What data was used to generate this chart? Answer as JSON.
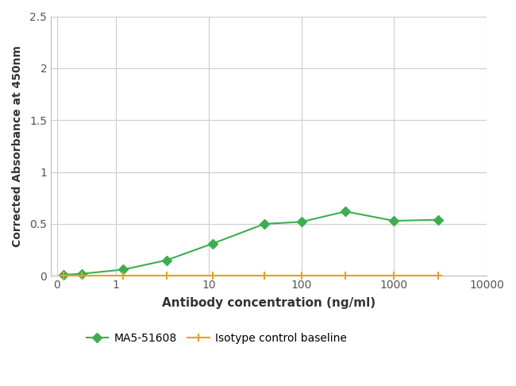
{
  "green_x": [
    0.1,
    0.4,
    1.2,
    3.5,
    11,
    40,
    100,
    300,
    1000,
    3000
  ],
  "green_y": [
    0.01,
    0.02,
    0.06,
    0.15,
    0.31,
    0.5,
    0.52,
    0.62,
    0.53,
    0.54
  ],
  "orange_x": [
    0.1,
    0.4,
    1.2,
    3.5,
    11,
    40,
    100,
    300,
    1000,
    3000
  ],
  "orange_y": [
    0.005,
    0.005,
    0.005,
    0.005,
    0.005,
    0.005,
    0.005,
    0.005,
    0.005,
    0.005
  ],
  "green_color": "#3dae4f",
  "orange_color": "#e8a025",
  "green_label": "MA5-51608",
  "orange_label": "Isotype control baseline",
  "xlabel": "Antibody concentration (ng/ml)",
  "ylabel": "Corrected Absorbance at 450nm",
  "ylim": [
    0,
    2.5
  ],
  "yticks": [
    0,
    0.5,
    1,
    1.5,
    2,
    2.5
  ],
  "xticks": [
    0,
    1,
    10,
    100,
    1000,
    10000
  ],
  "xtick_labels": [
    "0",
    "1",
    "10",
    "100",
    "1000",
    "10000"
  ],
  "background_color": "#ffffff",
  "grid_color": "#cccccc",
  "marker_size": 6,
  "line_width": 1.5
}
